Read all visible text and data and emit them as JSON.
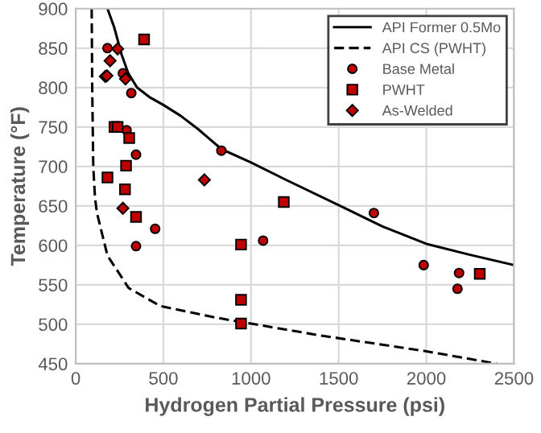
{
  "chart_data": {
    "type": "scatter",
    "xlabel": "Hydrogen Partial Pressure (psi)",
    "ylabel": "Temperature (°F)",
    "xlim": [
      0,
      2500
    ],
    "ylim": [
      450,
      900
    ],
    "xticks": [
      0,
      500,
      1000,
      1500,
      2000,
      2500
    ],
    "yticks": [
      450,
      500,
      550,
      600,
      650,
      700,
      750,
      800,
      850,
      900
    ],
    "grid": true,
    "legend": "top right",
    "series": [
      {
        "name": "API Former 0.5Mo",
        "type": "line",
        "color": "#000000",
        "line_style": "solid",
        "marker": "none",
        "x": [
          181,
          220,
          260,
          300,
          350,
          420,
          500,
          600,
          700,
          831,
          1000,
          1200,
          1500,
          1750,
          2000,
          2250,
          2500
        ],
        "values": [
          900,
          876,
          843,
          818,
          800,
          788,
          778,
          764,
          747,
          722,
          705,
          683,
          651,
          624,
          602,
          588,
          575
        ]
      },
      {
        "name": "API CS (PWHT)",
        "type": "line",
        "color": "#000000",
        "line_style": "dashed",
        "marker": "none",
        "x": [
          91,
          94,
          100,
          110,
          121,
          181,
          302,
          483,
          785,
          943,
          1390,
          1994,
          2402
        ],
        "values": [
          900,
          800,
          700,
          660,
          641,
          587,
          546,
          523,
          509,
          503,
          486,
          466,
          450
        ]
      },
      {
        "name": "Base Metal",
        "color": "#c00000",
        "marker": "circle",
        "x": [
          181,
          269,
          317,
          290,
          344,
          453,
          344,
          831,
          1701,
          1069,
          1985,
          2187,
          2178
        ],
        "values": [
          850,
          818,
          793,
          746,
          715,
          621,
          599,
          720,
          641,
          606,
          575,
          565,
          545
        ]
      },
      {
        "name": "PWHT",
        "color": "#c00000",
        "marker": "square",
        "x": [
          221,
          239,
          305,
          287,
          181,
          281,
          344,
          390,
          1187,
          943,
          943,
          943,
          2305
        ],
        "values": [
          750,
          750,
          736,
          701,
          686,
          671,
          636,
          861,
          655,
          601,
          531,
          501,
          564
        ]
      },
      {
        "name": "As-Welded",
        "color": "#c00000",
        "marker": "diamond",
        "x": [
          239,
          196,
          169,
          178,
          284,
          269,
          734
        ],
        "values": [
          849,
          834,
          814,
          815,
          811,
          647,
          683
        ]
      }
    ]
  }
}
